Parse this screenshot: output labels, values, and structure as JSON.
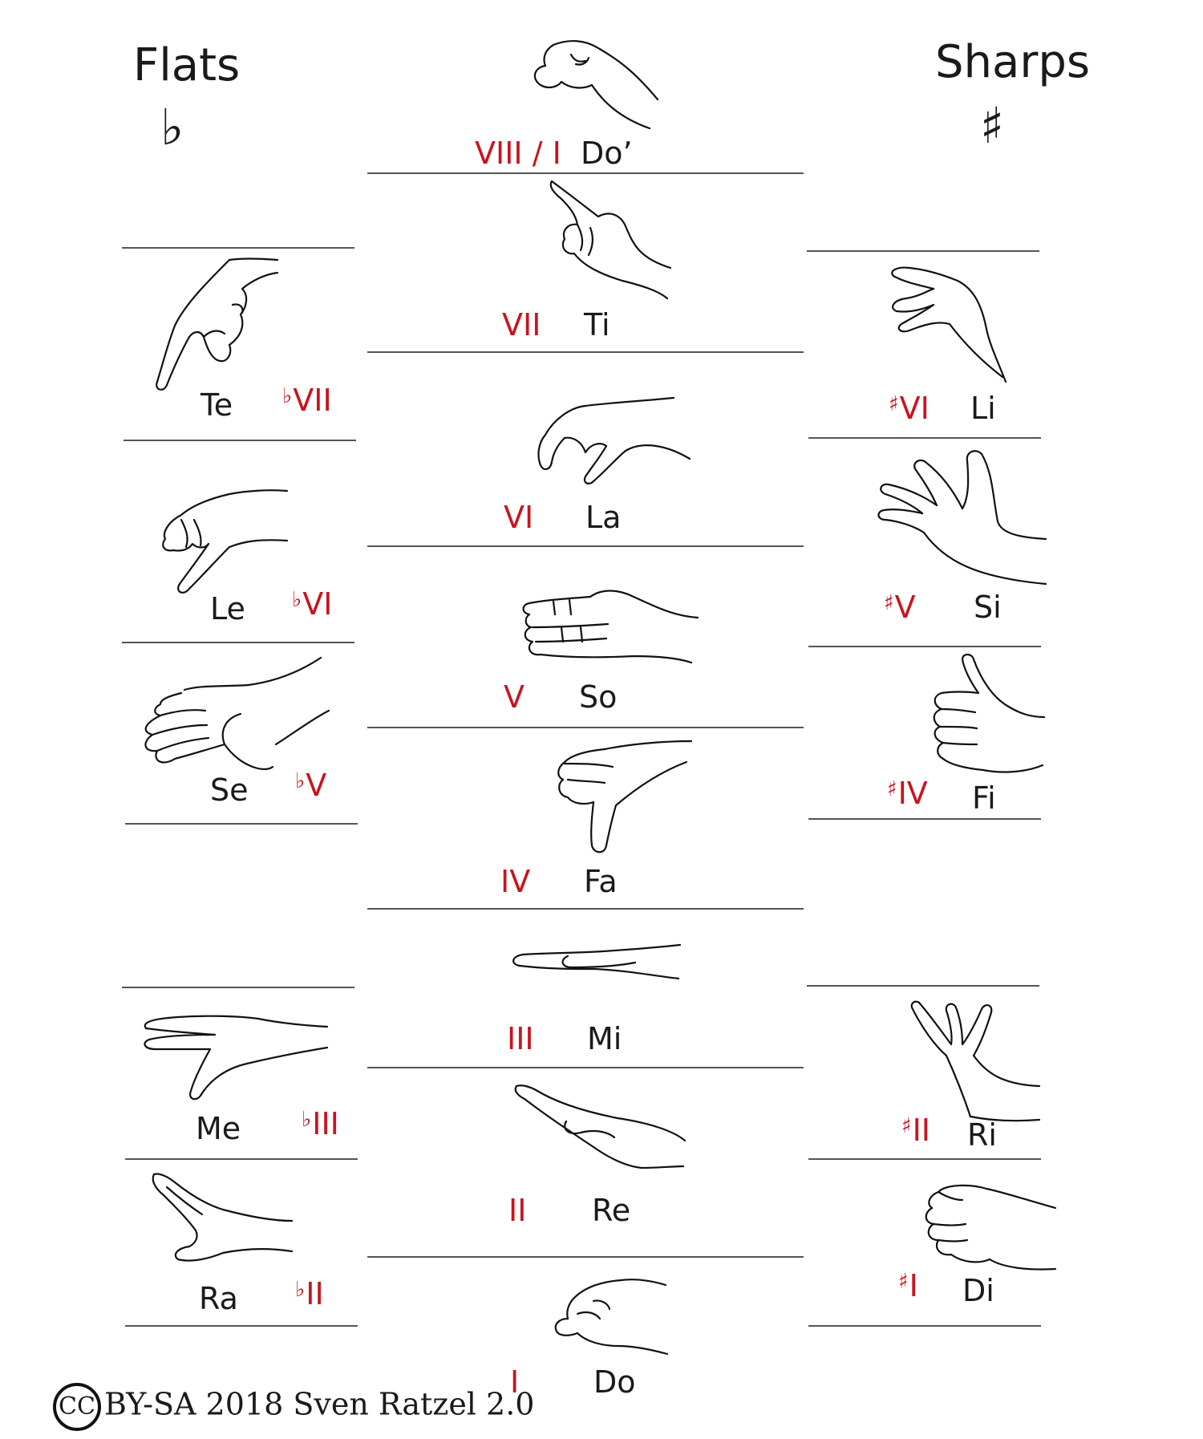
{
  "headers": {
    "flats": "Flats",
    "flat_symbol": "♭",
    "sharps": "Sharps",
    "sharp_symbol": "♯"
  },
  "accent_color": "#c8141e",
  "signs": {
    "do_high": {
      "degree": "VIII / I",
      "syllable": "Do’",
      "icon": "fist-up-hand-icon"
    },
    "ti": {
      "degree": "VII",
      "syllable": "Ti",
      "icon": "pointing-up-hand-icon"
    },
    "la": {
      "degree": "VI",
      "syllable": "La",
      "icon": "drooping-hand-icon"
    },
    "so": {
      "degree": "V",
      "syllable": "So",
      "icon": "flat-palm-hand-icon"
    },
    "fa": {
      "degree": "IV",
      "syllable": "Fa",
      "icon": "thumb-down-hand-icon"
    },
    "mi": {
      "degree": "III",
      "syllable": "Mi",
      "icon": "level-flat-hand-icon"
    },
    "re": {
      "degree": "II",
      "syllable": "Re",
      "icon": "slanted-hand-icon"
    },
    "do_low": {
      "degree": "I",
      "syllable": "Do",
      "icon": "fist-hand-icon"
    },
    "te": {
      "accidental": "♭",
      "degree": "VII",
      "syllable": "Te",
      "icon": "pointing-down-hand-icon"
    },
    "le": {
      "accidental": "♭",
      "degree": "VI",
      "syllable": "Le",
      "icon": "curled-hand-icon"
    },
    "se": {
      "accidental": "♭",
      "degree": "V",
      "syllable": "Se",
      "icon": "open-palm-hand-icon"
    },
    "me": {
      "accidental": "♭",
      "degree": "III",
      "syllable": "Me",
      "icon": "flat-thumb-hand-icon"
    },
    "ra": {
      "accidental": "♭",
      "degree": "II",
      "syllable": "Ra",
      "icon": "angled-hand-icon"
    },
    "li": {
      "accidental": "♯",
      "degree": "VI",
      "syllable": "Li",
      "icon": "reaching-hand-icon"
    },
    "si": {
      "accidental": "♯",
      "degree": "V",
      "syllable": "Si",
      "icon": "spread-hand-icon"
    },
    "fi": {
      "accidental": "♯",
      "degree": "IV",
      "syllable": "Fi",
      "icon": "thumb-up-hand-icon"
    },
    "ri": {
      "accidental": "♯",
      "degree": "II",
      "syllable": "Ri",
      "icon": "v-fingers-hand-icon"
    },
    "di": {
      "accidental": "♯",
      "degree": "I",
      "syllable": "Di",
      "icon": "knuckle-fist-hand-icon"
    }
  },
  "credit": {
    "cc_mark": "CC",
    "text": "BY-SA 2018 Sven Ratzel 2.0"
  }
}
